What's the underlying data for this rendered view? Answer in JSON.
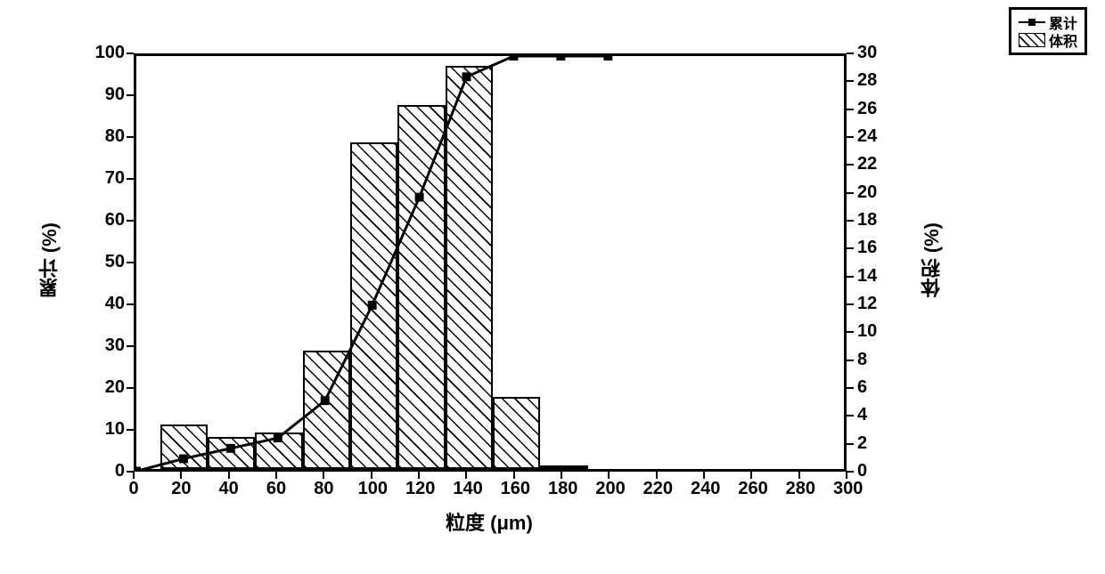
{
  "chart": {
    "type": "bar+line",
    "background_color": "#ffffff",
    "border_color": "#000000",
    "border_width": 3,
    "xlabel": "粒度 (μm)",
    "ylabel_left": "累计 (%)",
    "ylabel_right": "体积 (%)",
    "label_fontsize": 22,
    "tick_fontsize": 20,
    "xlim": [
      0,
      300
    ],
    "xtick_step": 20,
    "xticks": [
      0,
      20,
      40,
      60,
      80,
      100,
      120,
      140,
      160,
      180,
      200,
      220,
      240,
      260,
      280,
      300
    ],
    "y_left_lim": [
      0,
      100
    ],
    "y_left_tick_step": 10,
    "y_left_ticks": [
      0,
      10,
      20,
      30,
      40,
      50,
      60,
      70,
      80,
      90,
      100
    ],
    "y_right_lim": [
      0,
      30
    ],
    "y_right_tick_step": 2,
    "y_right_ticks": [
      0,
      2,
      4,
      6,
      8,
      10,
      12,
      14,
      16,
      18,
      20,
      22,
      24,
      26,
      28,
      30
    ],
    "bars": {
      "bin_edges": [
        10,
        30,
        50,
        70,
        90,
        110,
        130,
        150,
        170,
        190
      ],
      "volume_pct": [
        3.2,
        2.3,
        2.6,
        8.5,
        23.4,
        26.1,
        28.9,
        5.2,
        0.1
      ],
      "fill_color": "#ffffff",
      "hatch": "/",
      "hatch_color": "#000000",
      "border_color": "#000000",
      "border_width": 2
    },
    "line": {
      "x": [
        0,
        20,
        40,
        60,
        80,
        100,
        120,
        140,
        160,
        180,
        200
      ],
      "cumulative_pct": [
        0,
        3,
        5.5,
        8,
        17,
        40,
        66,
        95,
        100,
        100,
        100
      ],
      "color": "#000000",
      "width": 3,
      "marker": "square",
      "marker_size": 10,
      "marker_color": "#000000"
    },
    "legend": {
      "position": "top-right-outside",
      "items": [
        {
          "type": "line_marker",
          "label": "累计"
        },
        {
          "type": "hatch_box",
          "label": "体积"
        }
      ],
      "border_color": "#000000",
      "background_color": "#ffffff",
      "fontsize": 16
    }
  }
}
